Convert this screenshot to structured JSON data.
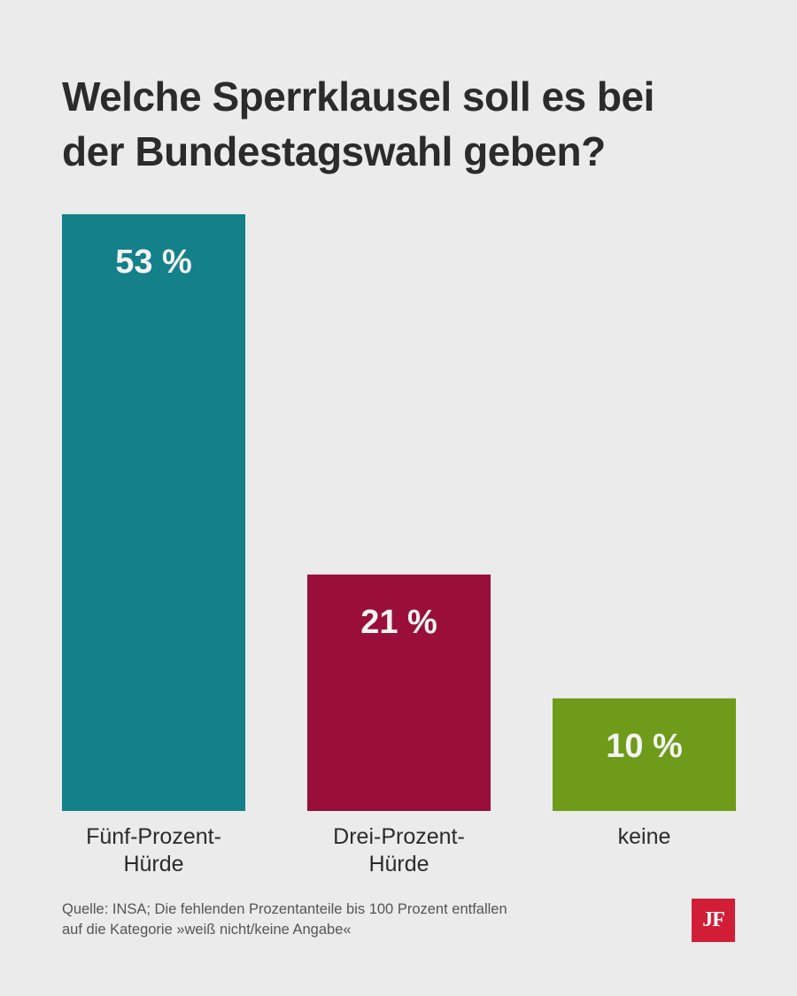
{
  "title": "Welche Sperrklausel soll es bei\nder Bundestagswahl geben?",
  "footnote": {
    "line1": "Quelle: INSA; Die fehlenden Prozentanteile bis 100 Prozent entfallen",
    "line2": "auf die Kategorie »weiß nicht/keine Angabe«"
  },
  "logo": {
    "text": "JF",
    "color": "#d21d36"
  },
  "chart_data": {
    "type": "bar",
    "title": "Welche Sperrklausel soll es bei der Bundestagswahl geben?",
    "categories": [
      [
        "Fünf-Prozent-",
        "Hürde"
      ],
      [
        "Drei-Prozent-",
        "Hürde"
      ],
      [
        "keine"
      ]
    ],
    "values": [
      53,
      21,
      10
    ],
    "value_labels": [
      "53 %",
      "21 %",
      "10 %"
    ],
    "colors": [
      "#13808a",
      "#990f3a",
      "#6e9b19"
    ],
    "ylim": [
      0,
      53
    ],
    "grid": false,
    "xlabel": "",
    "ylabel": ""
  }
}
